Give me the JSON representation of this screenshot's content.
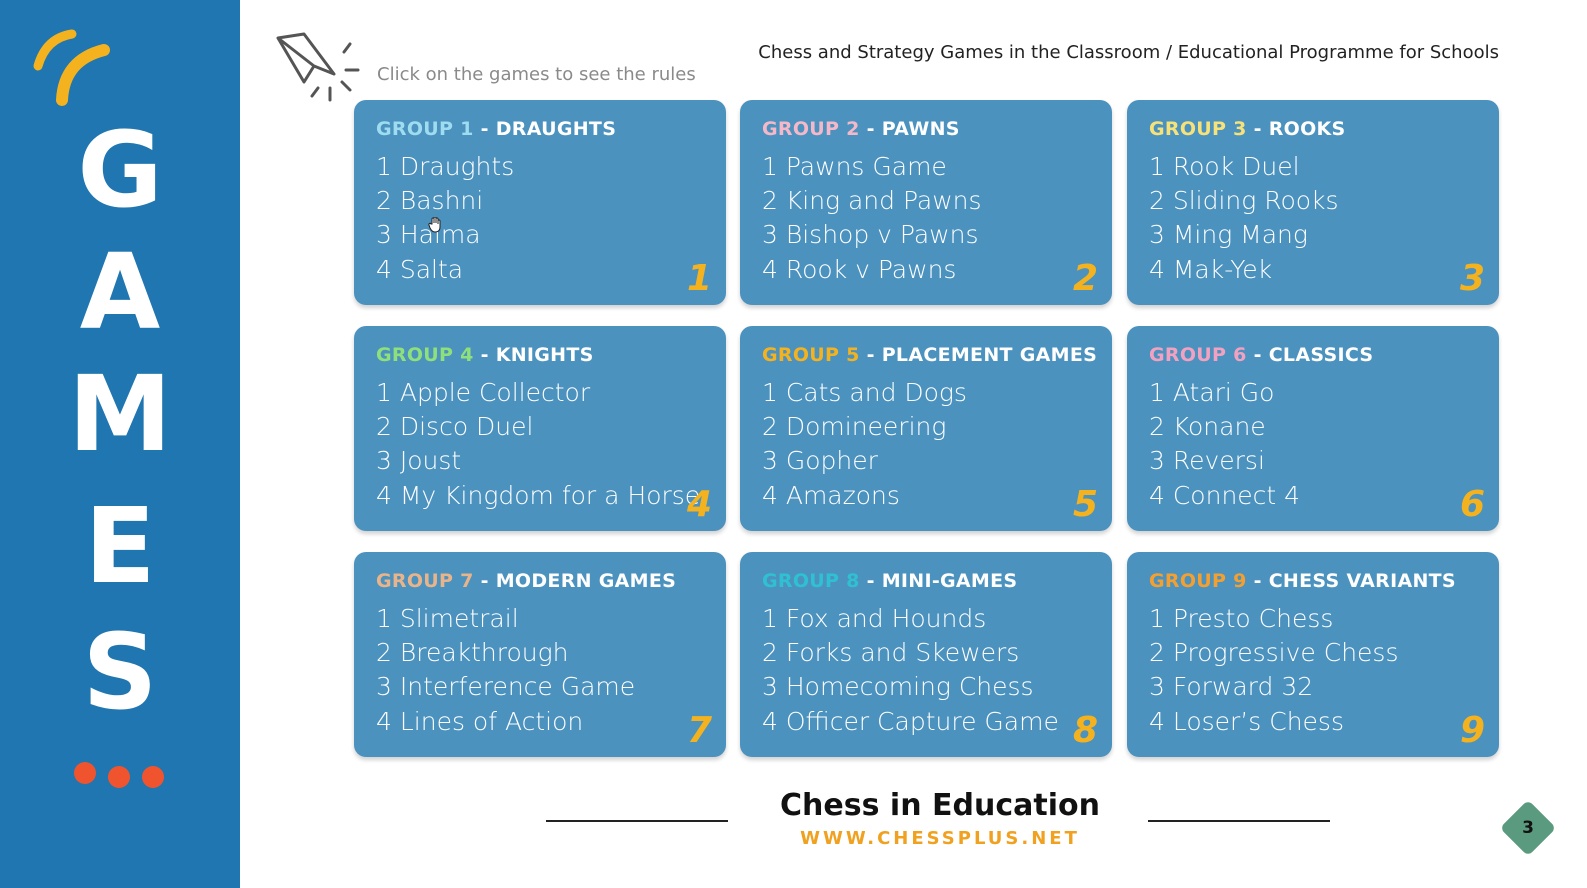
{
  "sidebar": {
    "letters": [
      "G",
      "A",
      "M",
      "E",
      "S"
    ],
    "dots_color": "#f0542e",
    "swoosh_color": "#f4b21f"
  },
  "header": {
    "hint": "Click on the games to see the rules",
    "title": "Chess and Strategy Games in the Classroom / Educational Programme for Schools"
  },
  "cards": [
    {
      "group_label": "GROUP 1",
      "name": "DRAUGHTS",
      "label_color": "#9fdcf0",
      "games": [
        "1 Draughts",
        "2 Bashni",
        "3 Halma",
        "4 Salta"
      ],
      "number": "1"
    },
    {
      "group_label": "GROUP 2",
      "name": "PAWNS",
      "label_color": "#f5b8c8",
      "games": [
        "1 Pawns Game",
        "2 King and Pawns",
        "3 Bishop v Pawns",
        "4 Rook v Pawns"
      ],
      "number": "2"
    },
    {
      "group_label": "GROUP 3",
      "name": "ROOKS",
      "label_color": "#f7e27a",
      "games": [
        "1 Rook Duel",
        "2 Sliding Rooks",
        "3 Ming Mang",
        "4 Mak-Yek"
      ],
      "number": "3"
    },
    {
      "group_label": "GROUP 4",
      "name": "KNIGHTS",
      "label_color": "#8ee07a",
      "games": [
        "1 Apple Collector",
        "2 Disco Duel",
        "3  Joust",
        "4  My Kingdom for a Horse"
      ],
      "number": "4"
    },
    {
      "group_label": "GROUP 5",
      "name": "PLACEMENT GAMES",
      "label_color": "#f4b21f",
      "games": [
        "1 Cats and Dogs",
        "2 Domineering",
        "3 Gopher",
        "4 Amazons"
      ],
      "number": "5"
    },
    {
      "group_label": "GROUP 6",
      "name": "CLASSICS",
      "label_color": "#f3a1c0",
      "games": [
        "1 Atari Go",
        "2 Konane",
        "3 Reversi",
        "4 Connect 4"
      ],
      "number": "6"
    },
    {
      "group_label": "GROUP 7",
      "name": "MODERN GAMES",
      "label_color": "#e9b48a",
      "games": [
        "1 Slimetrail",
        "2 Breakthrough",
        "3 Interference Game",
        "4 Lines of Action"
      ],
      "number": "7"
    },
    {
      "group_label": "GROUP 8",
      "name": "MINI-GAMES",
      "label_color": "#2fc1d2",
      "games": [
        "1 Fox and Hounds",
        "2 Forks and Skewers",
        "3 Homecoming Chess",
        "4 Officer Capture Game"
      ],
      "number": "8"
    },
    {
      "group_label": "GROUP 9",
      "name": "CHESS VARIANTS",
      "label_color": "#f4a030",
      "games": [
        "1 Presto Chess",
        "2 Progressive Chess",
        "3 Forward 32",
        "4 Loser’s Chess"
      ],
      "number": "9"
    }
  ],
  "footer": {
    "title": "Chess in Education",
    "url": "WWW.CHESSPLUS.NET",
    "page_number": "3"
  },
  "colors": {
    "sidebar_bg": "#1f76b0",
    "card_bg": "#4c92bf",
    "number_color": "#f4b21f",
    "url_color": "#f0a11f"
  }
}
